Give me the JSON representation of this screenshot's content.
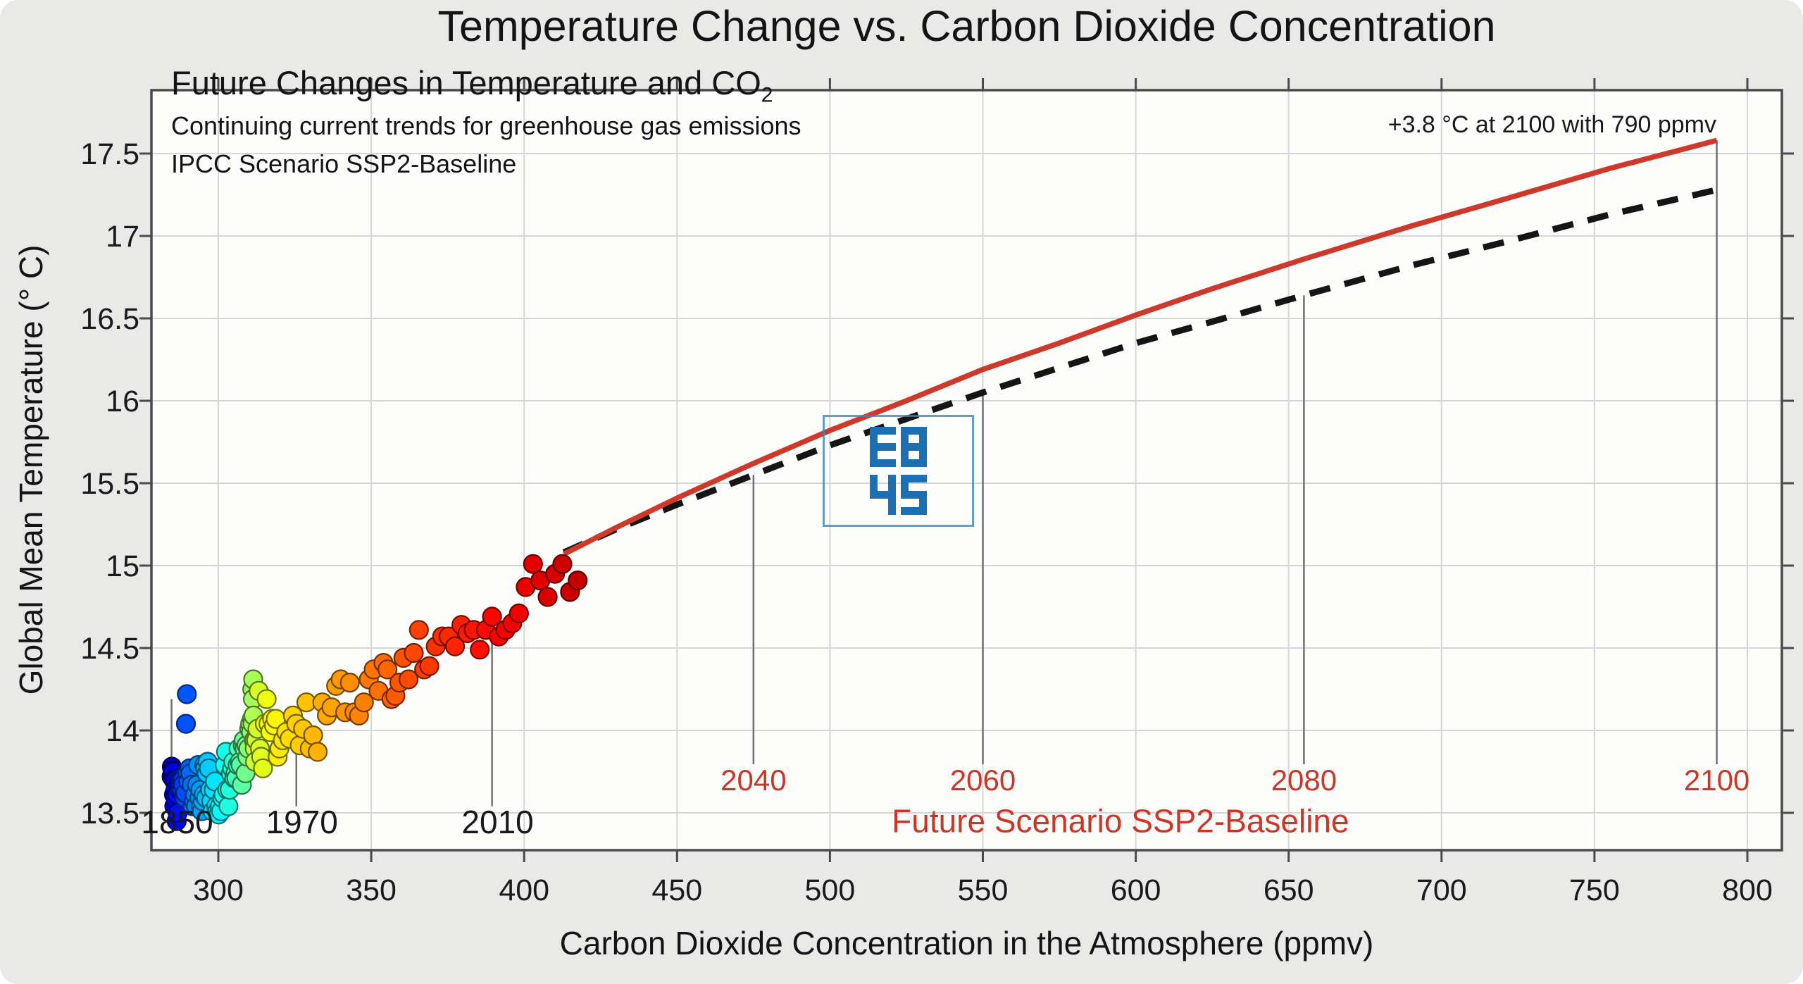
{
  "title": "Temperature Change vs. Carbon Dioxide Concentration",
  "annotations": {
    "main_text": "Future Changes in Temperature and CO",
    "main_sub": "2",
    "line2": "Continuing current trends for greenhouse gas emissions",
    "line3": "IPCC Scenario SSP2-Baseline",
    "top_right": "+3.8 °C at 2100 with 790 ppmv"
  },
  "watermark": {
    "rows": [
      "E8",
      "45"
    ],
    "color": "#1d6fb3",
    "border_color": "#4487bf"
  },
  "chart_data": {
    "type": "scatter",
    "title": "Temperature Change vs. Carbon Dioxide Concentration",
    "xlabel": "Carbon Dioxide Concentration in the Atmosphere (ppmv)",
    "ylabel": "Global Mean Temperature (° C)",
    "x_ticks": [
      300,
      350,
      400,
      450,
      500,
      550,
      600,
      650,
      700,
      750,
      800
    ],
    "y_ticks": [
      "13.5",
      "14",
      "14.5",
      "15",
      "15.5",
      "16",
      "16.5",
      "17",
      "17.5"
    ],
    "xlim": [
      278,
      811
    ],
    "ylim": [
      13.27,
      17.89
    ],
    "grid": true,
    "legend_position": "none",
    "colors": {
      "red_line": "#cd3a2c",
      "dashed_line": "#151515",
      "red_text": "#cd3527",
      "axis": "#4a4a4a",
      "grid": "#d6d6d6",
      "drop_line": "#6f6f6f",
      "tick_text": "#1a1a1a"
    },
    "year_color_scale": {
      "type": "jet",
      "min": 1850,
      "max": 2022
    },
    "historical_points": [
      [
        1850,
        284.7,
        13.72
      ],
      [
        1851,
        284.8,
        13.78
      ],
      [
        1852,
        285.0,
        13.76
      ],
      [
        1853,
        285.1,
        13.71
      ],
      [
        1854,
        285.2,
        13.75
      ],
      [
        1855,
        285.4,
        13.7
      ],
      [
        1856,
        285.5,
        13.61
      ],
      [
        1857,
        285.6,
        13.54
      ],
      [
        1858,
        285.7,
        13.62
      ],
      [
        1859,
        285.9,
        13.7
      ],
      [
        1860,
        286.0,
        13.64
      ],
      [
        1861,
        286.2,
        13.57
      ],
      [
        1862,
        286.4,
        13.45
      ],
      [
        1863,
        286.5,
        13.61
      ],
      [
        1864,
        286.7,
        13.5
      ],
      [
        1865,
        286.9,
        13.67
      ],
      [
        1866,
        287.1,
        13.7
      ],
      [
        1867,
        287.3,
        13.64
      ],
      [
        1868,
        287.4,
        13.71
      ],
      [
        1869,
        287.6,
        13.67
      ],
      [
        1870,
        287.8,
        13.7
      ],
      [
        1871,
        288.0,
        13.64
      ],
      [
        1872,
        288.3,
        13.7
      ],
      [
        1873,
        288.5,
        13.67
      ],
      [
        1874,
        288.8,
        13.61
      ],
      [
        1875,
        289.0,
        13.59
      ],
      [
        1876,
        289.2,
        13.62
      ],
      [
        1877,
        289.4,
        14.04
      ],
      [
        1878,
        289.7,
        14.22
      ],
      [
        1879,
        289.9,
        13.74
      ],
      [
        1880,
        290.2,
        13.69
      ],
      [
        1881,
        290.6,
        13.77
      ],
      [
        1882,
        290.9,
        13.74
      ],
      [
        1883,
        291.3,
        13.67
      ],
      [
        1884,
        291.6,
        13.54
      ],
      [
        1885,
        292.0,
        13.57
      ],
      [
        1886,
        292.4,
        13.61
      ],
      [
        1887,
        292.7,
        13.54
      ],
      [
        1888,
        293.1,
        13.67
      ],
      [
        1889,
        293.4,
        13.79
      ],
      [
        1890,
        293.8,
        13.59
      ],
      [
        1891,
        294.1,
        13.64
      ],
      [
        1892,
        294.3,
        13.54
      ],
      [
        1893,
        294.6,
        13.51
      ],
      [
        1894,
        294.9,
        13.57
      ],
      [
        1895,
        295.2,
        13.61
      ],
      [
        1896,
        295.4,
        13.79
      ],
      [
        1897,
        295.7,
        13.77
      ],
      [
        1898,
        296.0,
        13.59
      ],
      [
        1899,
        296.2,
        13.74
      ],
      [
        1900,
        296.5,
        13.81
      ],
      [
        1901,
        296.9,
        13.77
      ],
      [
        1902,
        297.3,
        13.64
      ],
      [
        1903,
        297.7,
        13.57
      ],
      [
        1904,
        298.1,
        13.51
      ],
      [
        1905,
        298.5,
        13.64
      ],
      [
        1906,
        298.9,
        13.69
      ],
      [
        1907,
        299.3,
        13.54
      ],
      [
        1908,
        299.7,
        13.51
      ],
      [
        1909,
        300.1,
        13.49
      ],
      [
        1910,
        300.5,
        13.54
      ],
      [
        1911,
        300.9,
        13.51
      ],
      [
        1912,
        301.3,
        13.59
      ],
      [
        1913,
        301.7,
        13.61
      ],
      [
        1914,
        302.1,
        13.79
      ],
      [
        1915,
        302.5,
        13.87
      ],
      [
        1916,
        302.9,
        13.64
      ],
      [
        1917,
        303.3,
        13.54
      ],
      [
        1918,
        303.7,
        13.64
      ],
      [
        1919,
        304.1,
        13.74
      ],
      [
        1920,
        304.5,
        13.77
      ],
      [
        1921,
        304.9,
        13.81
      ],
      [
        1922,
        305.2,
        13.71
      ],
      [
        1923,
        305.6,
        13.74
      ],
      [
        1924,
        305.9,
        13.71
      ],
      [
        1925,
        306.3,
        13.79
      ],
      [
        1926,
        306.6,
        13.89
      ],
      [
        1927,
        307.0,
        13.81
      ],
      [
        1928,
        307.3,
        13.79
      ],
      [
        1929,
        307.7,
        13.67
      ],
      [
        1930,
        308.0,
        13.91
      ],
      [
        1931,
        308.3,
        13.94
      ],
      [
        1932,
        308.6,
        13.89
      ],
      [
        1933,
        308.9,
        13.74
      ],
      [
        1934,
        309.2,
        13.91
      ],
      [
        1935,
        309.5,
        13.84
      ],
      [
        1936,
        309.8,
        13.89
      ],
      [
        1937,
        310.1,
        14.01
      ],
      [
        1938,
        310.4,
        14.04
      ],
      [
        1939,
        310.7,
        13.99
      ],
      [
        1940,
        311.0,
        14.07
      ],
      [
        1941,
        311.1,
        14.25
      ],
      [
        1942,
        311.2,
        14.04
      ],
      [
        1943,
        311.3,
        14.19
      ],
      [
        1944,
        311.4,
        14.31
      ],
      [
        1945,
        311.5,
        14.09
      ],
      [
        1946,
        311.6,
        13.94
      ],
      [
        1947,
        311.7,
        13.94
      ],
      [
        1948,
        311.8,
        13.94
      ],
      [
        1949,
        311.9,
        13.89
      ],
      [
        1950,
        312.0,
        13.81
      ],
      [
        1951,
        312.4,
        13.94
      ],
      [
        1952,
        312.8,
        14.01
      ],
      [
        1953,
        313.2,
        14.24
      ],
      [
        1954,
        313.6,
        13.89
      ],
      [
        1955,
        314.0,
        13.84
      ],
      [
        1956,
        314.6,
        13.77
      ],
      [
        1957,
        315.2,
        14.04
      ],
      [
        1958,
        315.8,
        14.19
      ],
      [
        1959,
        316.4,
        14.04
      ],
      [
        1960,
        317.0,
        13.99
      ],
      [
        1961,
        317.6,
        14.07
      ],
      [
        1962,
        318.2,
        14.03
      ],
      [
        1963,
        318.8,
        14.07
      ],
      [
        1964,
        319.4,
        13.84
      ],
      [
        1965,
        320.0,
        13.89
      ],
      [
        1966,
        321.1,
        13.94
      ],
      [
        1967,
        322.2,
        13.99
      ],
      [
        1968,
        323.3,
        13.95
      ],
      [
        1969,
        324.4,
        14.09
      ],
      [
        1970,
        325.5,
        14.04
      ],
      [
        1971,
        326.6,
        13.91
      ],
      [
        1972,
        327.7,
        14.01
      ],
      [
        1973,
        328.8,
        14.17
      ],
      [
        1974,
        329.9,
        13.89
      ],
      [
        1975,
        331.0,
        13.97
      ],
      [
        1976,
        332.5,
        13.87
      ],
      [
        1977,
        334.0,
        14.17
      ],
      [
        1978,
        335.5,
        14.09
      ],
      [
        1979,
        337.0,
        14.14
      ],
      [
        1980,
        338.5,
        14.27
      ],
      [
        1981,
        340.0,
        14.31
      ],
      [
        1982,
        341.5,
        14.11
      ],
      [
        1983,
        343.0,
        14.29
      ],
      [
        1984,
        344.5,
        14.11
      ],
      [
        1985,
        346.0,
        14.09
      ],
      [
        1986,
        347.6,
        14.17
      ],
      [
        1987,
        349.2,
        14.31
      ],
      [
        1988,
        350.8,
        14.37
      ],
      [
        1989,
        352.4,
        14.24
      ],
      [
        1990,
        354.0,
        14.41
      ],
      [
        1991,
        355.3,
        14.37
      ],
      [
        1992,
        356.6,
        14.19
      ],
      [
        1993,
        357.9,
        14.21
      ],
      [
        1994,
        359.2,
        14.29
      ],
      [
        1995,
        360.5,
        14.44
      ],
      [
        1996,
        362.2,
        14.31
      ],
      [
        1997,
        363.9,
        14.47
      ],
      [
        1998,
        365.6,
        14.61
      ],
      [
        1999,
        367.3,
        14.37
      ],
      [
        2000,
        369.0,
        14.39
      ],
      [
        2001,
        371.1,
        14.51
      ],
      [
        2002,
        373.2,
        14.57
      ],
      [
        2003,
        375.3,
        14.57
      ],
      [
        2004,
        377.4,
        14.51
      ],
      [
        2005,
        379.5,
        14.64
      ],
      [
        2006,
        381.5,
        14.59
      ],
      [
        2007,
        383.5,
        14.61
      ],
      [
        2008,
        385.5,
        14.49
      ],
      [
        2009,
        387.5,
        14.61
      ],
      [
        2010,
        389.5,
        14.69
      ],
      [
        2011,
        391.7,
        14.57
      ],
      [
        2012,
        393.9,
        14.61
      ],
      [
        2013,
        396.1,
        14.65
      ],
      [
        2014,
        398.3,
        14.71
      ],
      [
        2015,
        400.5,
        14.87
      ],
      [
        2016,
        402.9,
        15.01
      ],
      [
        2017,
        405.3,
        14.91
      ],
      [
        2018,
        407.7,
        14.81
      ],
      [
        2019,
        410.1,
        14.95
      ],
      [
        2020,
        412.5,
        15.01
      ],
      [
        2021,
        415.0,
        14.84
      ],
      [
        2022,
        417.5,
        14.91
      ]
    ],
    "historical_year_markers": [
      {
        "year": "1850",
        "co2": 284.7,
        "t_top": 14.19
      },
      {
        "year": "1970",
        "co2": 325.5,
        "t_top": 14.02
      },
      {
        "year": "2010",
        "co2": 389.5,
        "t_top": 14.72
      }
    ],
    "future_year_markers": [
      {
        "year": "2040",
        "co2": 475,
        "t_top": 15.55
      },
      {
        "year": "2060",
        "co2": 550,
        "t_top": 16.05
      },
      {
        "year": "2080",
        "co2": 655,
        "t_top": 16.64
      },
      {
        "year": "2100",
        "co2": 790,
        "t_top": 17.58
      }
    ],
    "future_red_line": {
      "name": "Future Scenario SSP2-Baseline (red solid)",
      "points": [
        [
          413,
          15.07
        ],
        [
          430,
          15.23
        ],
        [
          450,
          15.41
        ],
        [
          475,
          15.62
        ],
        [
          500,
          15.82
        ],
        [
          525,
          16.0
        ],
        [
          550,
          16.19
        ],
        [
          575,
          16.35
        ],
        [
          600,
          16.52
        ],
        [
          625,
          16.68
        ],
        [
          655,
          16.86
        ],
        [
          690,
          17.06
        ],
        [
          720,
          17.22
        ],
        [
          755,
          17.41
        ],
        [
          790,
          17.58
        ]
      ]
    },
    "future_dashed_line": {
      "name": "SSP2-Baseline trend (black dashed)",
      "points": [
        [
          413,
          15.08
        ],
        [
          430,
          15.22
        ],
        [
          450,
          15.37
        ],
        [
          475,
          15.55
        ],
        [
          500,
          15.73
        ],
        [
          525,
          15.89
        ],
        [
          550,
          16.05
        ],
        [
          575,
          16.2
        ],
        [
          600,
          16.35
        ],
        [
          625,
          16.48
        ],
        [
          655,
          16.64
        ],
        [
          690,
          16.82
        ],
        [
          720,
          16.96
        ],
        [
          755,
          17.13
        ],
        [
          790,
          17.28
        ]
      ]
    },
    "future_label": {
      "text": "Future Scenario SSP2-Baseline",
      "co2": 595,
      "t": 13.45
    }
  }
}
